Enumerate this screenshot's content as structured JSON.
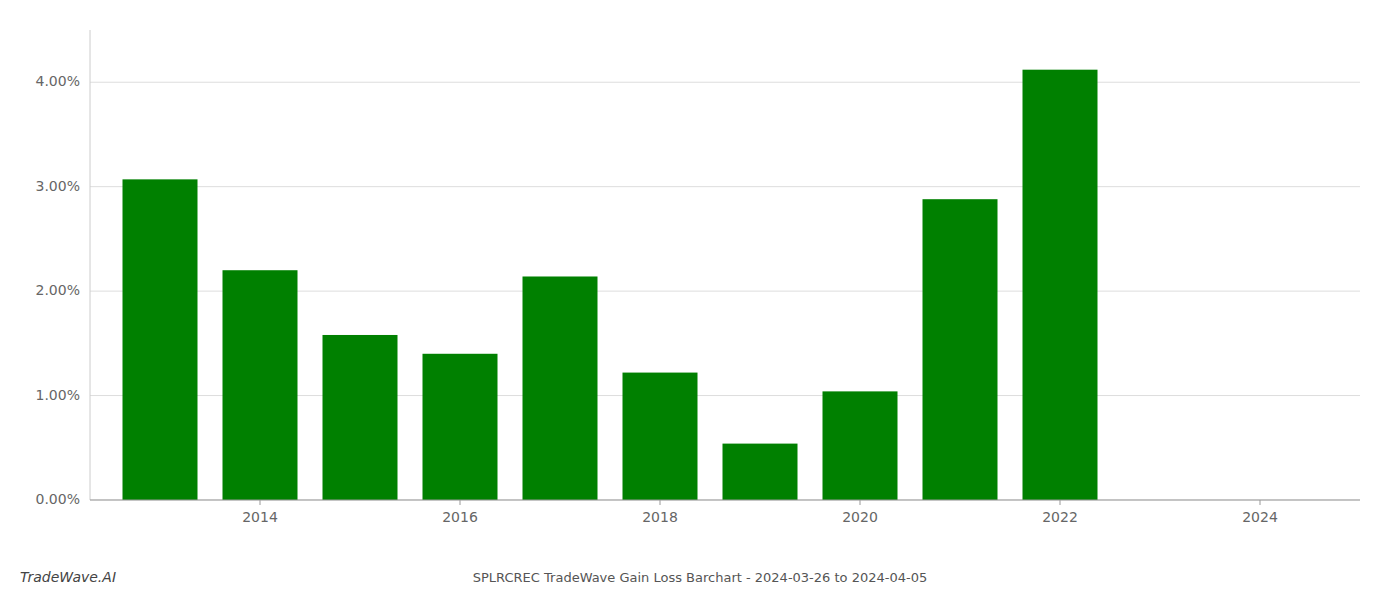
{
  "chart_data": {
    "type": "bar",
    "title": "SPLRCREC TradeWave Gain Loss Barchart - 2024-03-26 to 2024-04-05",
    "annotations": [
      "TradeWave.AI"
    ],
    "x": [
      2013,
      2014,
      2015,
      2016,
      2017,
      2018,
      2019,
      2020,
      2021,
      2022
    ],
    "values": [
      3.07,
      2.2,
      1.58,
      1.4,
      2.14,
      1.22,
      0.54,
      1.04,
      2.88,
      4.12
    ],
    "color": "#008000",
    "xlim": [
      2012.3,
      2025.0
    ],
    "xticks": [
      2014,
      2016,
      2018,
      2020,
      2022,
      2024
    ],
    "ylim": [
      0,
      4.5
    ],
    "yticks": [
      {
        "value": 0.0,
        "label": "0.00%"
      },
      {
        "value": 1.0,
        "label": "1.00%"
      },
      {
        "value": 2.0,
        "label": "2.00%"
      },
      {
        "value": 3.0,
        "label": "3.00%"
      },
      {
        "value": 4.0,
        "label": "4.00%"
      }
    ],
    "grid": true
  }
}
